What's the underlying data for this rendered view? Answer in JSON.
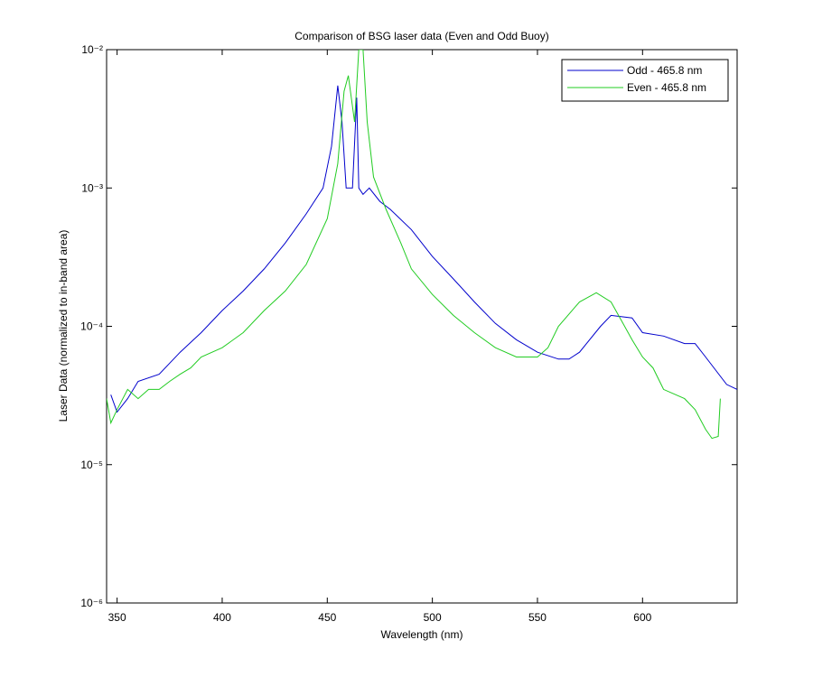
{
  "chart_data": {
    "type": "line",
    "title": "Comparison of BSG laser data (Even and Odd Buoy)",
    "x_label": "Wavelength (nm)",
    "y_label": "Laser Data (normalized to in-band area)",
    "log_y": true,
    "legend": "northeast",
    "xlim": [
      345,
      645
    ],
    "xticks": [
      350,
      400,
      450,
      500,
      550,
      600
    ],
    "ylim": [
      1e-06,
      0.01
    ],
    "yticks": [
      {
        "value": 1e-06,
        "label": "10⁻⁶"
      },
      {
        "value": 1e-05,
        "label": "10⁻⁵"
      },
      {
        "value": 0.0001,
        "label": "10⁻⁴"
      },
      {
        "value": 0.001,
        "label": "10⁻³"
      },
      {
        "value": 0.01,
        "label": "10⁻²"
      }
    ],
    "series": [
      {
        "name": "Odd - 465.8 nm",
        "color": "#0000cc",
        "x": [
          347,
          350,
          355,
          360,
          370,
          380,
          390,
          400,
          410,
          420,
          430,
          440,
          448,
          452,
          455,
          457,
          459,
          462,
          464,
          465,
          467,
          470,
          475,
          480,
          490,
          500,
          510,
          520,
          530,
          540,
          550,
          560,
          565,
          570,
          580,
          585,
          595,
          600,
          610,
          620,
          625,
          630,
          640,
          645
        ],
        "values": [
          3.2e-05,
          2.4e-05,
          3e-05,
          4e-05,
          4.5e-05,
          6.5e-05,
          9e-05,
          0.00013,
          0.00018,
          0.00026,
          0.0004,
          0.00065,
          0.001,
          0.002,
          0.0055,
          0.003,
          0.001,
          0.001,
          0.0045,
          0.001,
          0.0009,
          0.001,
          0.0008,
          0.0007,
          0.0005,
          0.00032,
          0.00022,
          0.00015,
          0.000105,
          8e-05,
          6.5e-05,
          5.8e-05,
          5.8e-05,
          6.5e-05,
          0.0001,
          0.00012,
          0.000115,
          9e-05,
          8.5e-05,
          7.5e-05,
          7.5e-05,
          6e-05,
          3.8e-05,
          3.5e-05
        ]
      },
      {
        "name": "Even - 465.8 nm",
        "color": "#22cc22",
        "x": [
          345,
          347,
          350,
          355,
          360,
          365,
          370,
          375,
          380,
          385,
          390,
          400,
          410,
          420,
          430,
          440,
          450,
          455,
          458,
          460,
          463,
          465,
          467,
          469,
          472,
          478,
          485,
          490,
          500,
          510,
          520,
          530,
          540,
          550,
          555,
          560,
          570,
          578,
          585,
          590,
          595,
          600,
          605,
          610,
          620,
          625,
          630,
          633,
          636,
          637
        ],
        "values": [
          3e-05,
          2e-05,
          2.5e-05,
          3.5e-05,
          3e-05,
          3.5e-05,
          3.5e-05,
          4e-05,
          4.5e-05,
          5e-05,
          6e-05,
          7e-05,
          9e-05,
          0.00013,
          0.00018,
          0.00028,
          0.0006,
          0.0015,
          0.005,
          0.0065,
          0.003,
          0.01,
          0.01,
          0.003,
          0.0012,
          0.0007,
          0.0004,
          0.00026,
          0.00017,
          0.00012,
          9e-05,
          7e-05,
          6e-05,
          6e-05,
          7e-05,
          0.0001,
          0.00015,
          0.000175,
          0.00015,
          0.00011,
          8e-05,
          6e-05,
          5e-05,
          3.5e-05,
          3e-05,
          2.5e-05,
          1.8e-05,
          1.55e-05,
          1.6e-05,
          3e-05
        ]
      }
    ]
  }
}
